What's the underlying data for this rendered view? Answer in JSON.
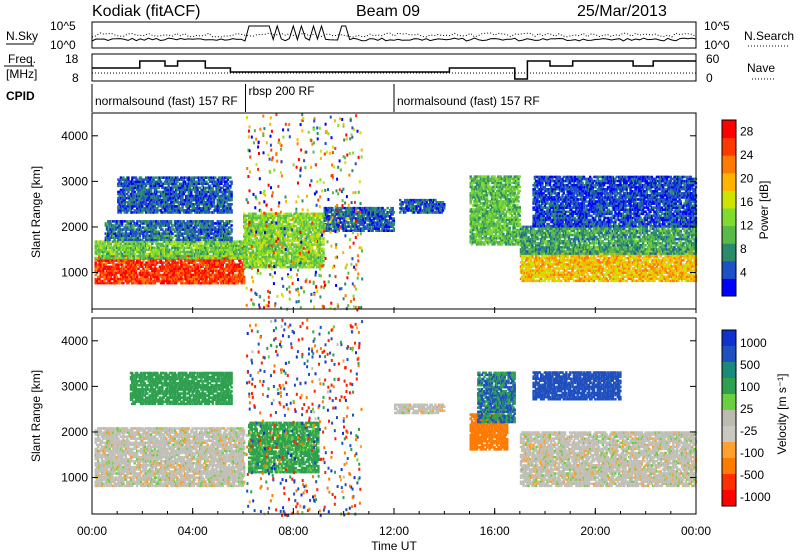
{
  "header": {
    "station": "Kodiak (fitACF)",
    "beam": "Beam 09",
    "date": "25/Mar/2013"
  },
  "status_panels": {
    "nsky": {
      "label": "N.Sky",
      "left_ticks": [
        "10^5",
        "10^0"
      ],
      "right_label": "N.Search",
      "right_ticks": [
        "10^5",
        "10^0"
      ]
    },
    "freq": {
      "label_line1": "Freq.",
      "label_line2": "[MHz]",
      "left_ticks": [
        "18",
        "8"
      ],
      "right_label": "Nave",
      "right_ticks": [
        "60",
        "0"
      ]
    },
    "cpid": {
      "label": "CPID",
      "programs": [
        {
          "name": "normalsound (fast) 157 RF",
          "start_hour": 0,
          "end_hour": 6.1
        },
        {
          "name": "rbsp 200 RF",
          "start_hour": 6.1,
          "end_hour": 12,
          "raised": true
        },
        {
          "name": "normalsound (fast) 157 RF",
          "start_hour": 12,
          "end_hour": 24
        }
      ]
    }
  },
  "chart_data": [
    {
      "type": "heatmap",
      "panel": "power",
      "xlabel": "Time UT",
      "ylabel": "Slant Range [km]",
      "xlim": [
        0,
        24
      ],
      "ylim": [
        200,
        4500
      ],
      "yticks": [
        1000,
        2000,
        3000,
        4000
      ],
      "colorbar": {
        "label": "Power [dB]",
        "ticks": [
          4,
          8,
          12,
          16,
          20,
          24,
          28
        ],
        "range": [
          0,
          30
        ],
        "colors": [
          "#0000ff",
          "#1e50c8",
          "#2a8a6a",
          "#59b949",
          "#7fdc2e",
          "#cfe300",
          "#ffb400",
          "#ff7a00",
          "#ff3800",
          "#ff0000"
        ]
      },
      "regions": [
        {
          "t0": 0.1,
          "t1": 6.0,
          "r0": 750,
          "r1": 1350,
          "value": 26
        },
        {
          "t0": 0.1,
          "t1": 6.0,
          "r0": 1300,
          "r1": 1700,
          "value": 12
        },
        {
          "t0": 0.5,
          "t1": 5.5,
          "r0": 1700,
          "r1": 2150,
          "value": 6
        },
        {
          "t0": 1.0,
          "t1": 5.5,
          "r0": 2300,
          "r1": 3100,
          "value": 5
        },
        {
          "t0": 6.0,
          "t1": 9.2,
          "r0": 1100,
          "r1": 2300,
          "value": 13
        },
        {
          "t0": 9.2,
          "t1": 12.0,
          "r0": 1900,
          "r1": 2400,
          "value": 5
        },
        {
          "t0": 12.2,
          "t1": 14.0,
          "r0": 2300,
          "r1": 2600,
          "value": 5
        },
        {
          "t0": 15.0,
          "t1": 17.0,
          "r0": 1600,
          "r1": 3100,
          "value": 11
        },
        {
          "t0": 17.0,
          "t1": 24.0,
          "r0": 800,
          "r1": 1500,
          "value": 19
        },
        {
          "t0": 17.0,
          "t1": 24.0,
          "r0": 1400,
          "r1": 2000,
          "value": 9
        },
        {
          "t0": 17.5,
          "t1": 24.0,
          "r0": 2000,
          "r1": 3100,
          "value": 4
        }
      ]
    },
    {
      "type": "heatmap",
      "panel": "velocity",
      "xlabel": "Time UT",
      "ylabel": "Slant Range [km]",
      "xlim": [
        0,
        24
      ],
      "ylim": [
        200,
        4500
      ],
      "yticks": [
        1000,
        2000,
        3000,
        4000
      ],
      "xticks": [
        "00:00",
        "04:00",
        "08:00",
        "12:00",
        "16:00",
        "20:00",
        "00:00"
      ],
      "colorbar": {
        "label": "Velocity [m s⁻¹]",
        "ticks": [
          "1000",
          "500",
          "100",
          "25",
          "-25",
          "-100",
          "-500",
          "-1000"
        ],
        "colors": [
          "#1030d0",
          "#2050c0",
          "#1a8a7a",
          "#2ea050",
          "#6ad040",
          "#bbbbb0",
          "#c8c8c0",
          "#ffa030",
          "#ff7a00",
          "#ff3000",
          "#ff0000"
        ]
      },
      "regions": [
        {
          "t0": 0.1,
          "t1": 6.0,
          "r0": 800,
          "r1": 2100,
          "value": 0
        },
        {
          "t0": 1.5,
          "t1": 5.5,
          "r0": 2600,
          "r1": 3300,
          "value": 150
        },
        {
          "t0": 6.2,
          "t1": 9.0,
          "r0": 1100,
          "r1": 2200,
          "value": 120
        },
        {
          "t0": 12.0,
          "t1": 14.0,
          "r0": 2400,
          "r1": 2600,
          "value": 0
        },
        {
          "t0": 15.0,
          "t1": 16.5,
          "r0": 1600,
          "r1": 2400,
          "value": -400
        },
        {
          "t0": 15.3,
          "t1": 16.8,
          "r0": 2200,
          "r1": 3300,
          "value": 300
        },
        {
          "t0": 17.0,
          "t1": 24.0,
          "r0": 800,
          "r1": 2000,
          "value": 0
        },
        {
          "t0": 17.5,
          "t1": 21.0,
          "r0": 2700,
          "r1": 3300,
          "value": 600
        }
      ]
    }
  ]
}
